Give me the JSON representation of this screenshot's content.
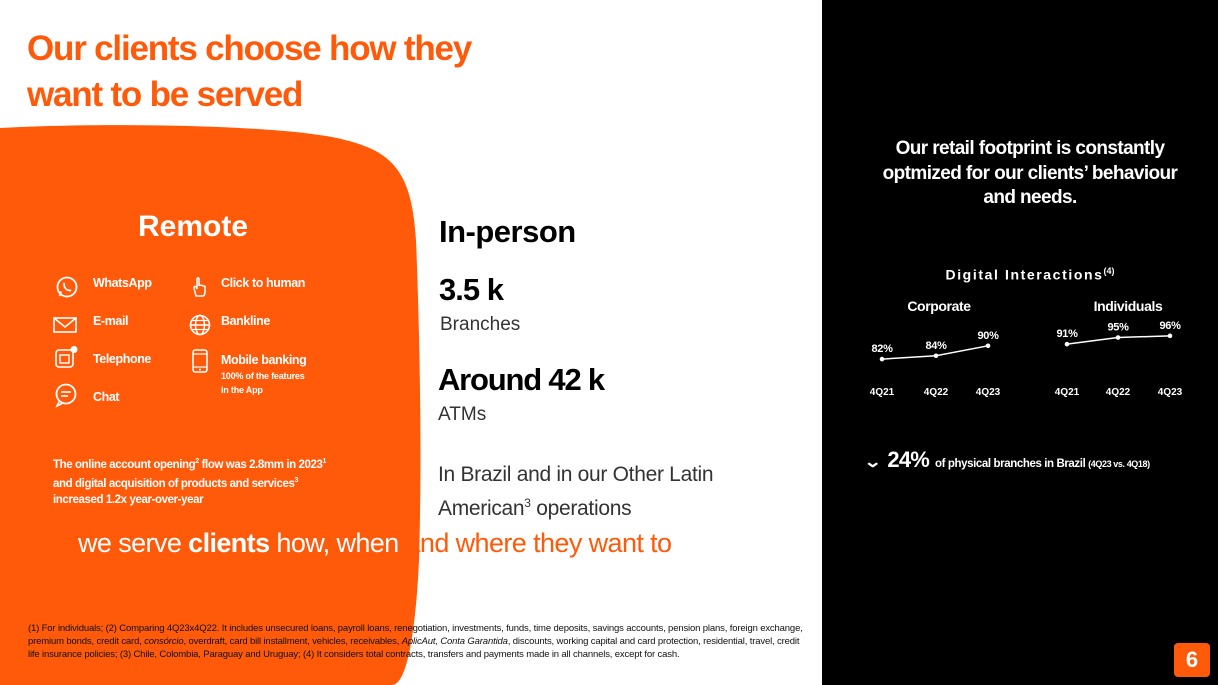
{
  "title": {
    "line1": "Our clients choose how they",
    "line2": "want to be served"
  },
  "remote": {
    "title": "Remote",
    "channels": [
      {
        "label": "WhatsApp",
        "icon": "whatsapp-icon"
      },
      {
        "label": "E-mail",
        "icon": "envelope-icon"
      },
      {
        "label": "Telephone",
        "icon": "telephone-icon"
      },
      {
        "label": "Chat",
        "icon": "chat-bubble-icon"
      },
      {
        "label": "Click to human",
        "icon": "pointer-hand-icon"
      },
      {
        "label": "Bankline",
        "icon": "globe-icon"
      },
      {
        "label": "Mobile banking",
        "icon": "smartphone-icon",
        "sub_line1": "100% of the features",
        "sub_line2": "in the App"
      }
    ],
    "note": {
      "part1": "The online account opening",
      "sup1": "2",
      "part2": " flow was 2.8mm in 2023",
      "sup2": "1",
      "part3": " and digital acquisition of products and services",
      "sup3": "3",
      "part4": " increased 1.2x year-over-year"
    }
  },
  "in_person": {
    "title": "In-person",
    "branches_value": "3.5 k",
    "branches_label": "Branches",
    "atms_value": "Around 42 k",
    "atms_label": "ATMs",
    "note_part1": "In Brazil and in our Other Latin American",
    "note_sup": "3",
    "note_part2": " operations"
  },
  "tagline": {
    "part1": "we serve ",
    "part2": "clients",
    "part3": " how, when ",
    "part4": "and where they want to"
  },
  "footnote": {
    "part1": "(1) For individuals;  (2) Comparing 4Q23x4Q22. It includes unsecured loans, payroll loans, renegotiation, investments, funds, time deposits, savings accounts, pension plans, foreign exchange, premium bonds, credit card, ",
    "italic1": "consórcio",
    "part2": ", overdraft, card bill installment, vehicles, receivables, ",
    "italic2": "AplicAut, Conta Garantida",
    "part3": ", discounts, working capital and card protection, residential, travel, credit life insurance policies; (3) Chile, Colombia, Paraguay and Uruguay; (4) It considers total contracts, transfers and payments made in all channels, except for cash."
  },
  "retail": {
    "line1": "Our retail footprint is constantly",
    "line2": "optmized for our clients’ behaviour",
    "line3": "and needs."
  },
  "digital_interactions": {
    "title": "Digital Interactions",
    "sup": "(4)"
  },
  "chart_data": [
    {
      "type": "line",
      "title": "Corporate",
      "categories": [
        "4Q21",
        "4Q22",
        "4Q23"
      ],
      "values": [
        82,
        84,
        90
      ],
      "labels": [
        "82%",
        "84%",
        "90%"
      ],
      "unit": "%"
    },
    {
      "type": "line",
      "title": "Individuals",
      "categories": [
        "4Q21",
        "4Q22",
        "4Q23"
      ],
      "values": [
        91,
        95,
        96
      ],
      "labels": [
        "91%",
        "95%",
        "96%"
      ],
      "unit": "%"
    }
  ],
  "branches_change": {
    "value": "24%",
    "text": "of physical branches in Brazil",
    "small": "(4Q23 vs. 4Q18)",
    "direction": "down"
  },
  "page_number": "6",
  "colors": {
    "accent": "#ff5a0a",
    "dark": "#000000",
    "text": "#333333"
  }
}
